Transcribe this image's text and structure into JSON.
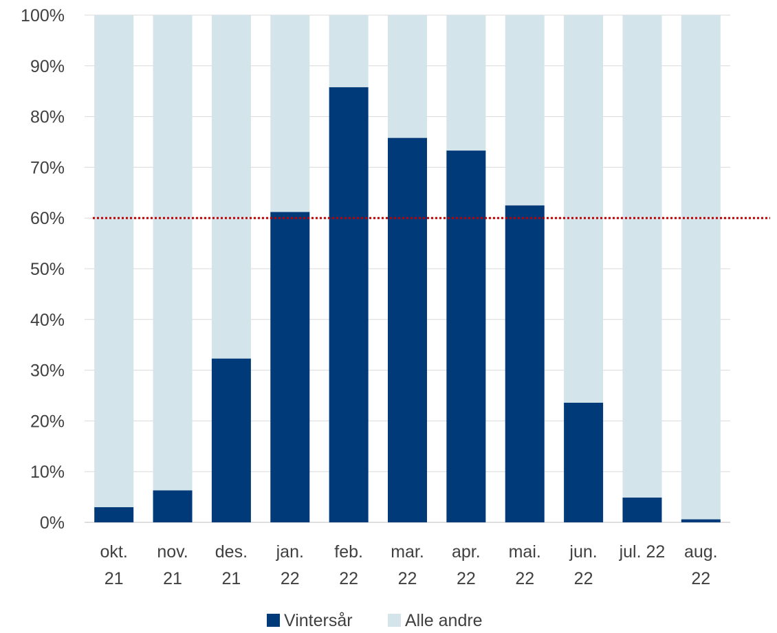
{
  "chart_data": {
    "type": "bar",
    "stacked": true,
    "categories": [
      [
        "okt.",
        "21"
      ],
      [
        "nov.",
        "21"
      ],
      [
        "des.",
        "21"
      ],
      [
        "jan.",
        "22"
      ],
      [
        "feb.",
        "22"
      ],
      [
        "mar.",
        "22"
      ],
      [
        "apr.",
        "22"
      ],
      [
        "mai.",
        "22"
      ],
      [
        "jun.",
        "22"
      ],
      [
        "jul. 22"
      ],
      [
        "aug.",
        "22"
      ]
    ],
    "series": [
      {
        "name": "Vintersår",
        "color": "#003a78",
        "values": [
          3,
          6.3,
          32.3,
          61.2,
          85.8,
          75.8,
          73.3,
          62.5,
          23.6,
          4.9,
          0.6
        ]
      },
      {
        "name": "Alle andre",
        "color": "#d3e4ea",
        "values": [
          97,
          93.7,
          67.7,
          38.8,
          14.2,
          24.2,
          26.7,
          37.5,
          76.4,
          95.1,
          99.4
        ]
      }
    ],
    "y_ticks": [
      "0%",
      "10%",
      "20%",
      "30%",
      "40%",
      "50%",
      "60%",
      "70%",
      "80%",
      "90%",
      "100%"
    ],
    "ylim": [
      0,
      100
    ],
    "reference_line": {
      "value": 60,
      "color": "#c00000",
      "style": "dotted"
    },
    "grid": true,
    "legend_position": "bottom"
  }
}
